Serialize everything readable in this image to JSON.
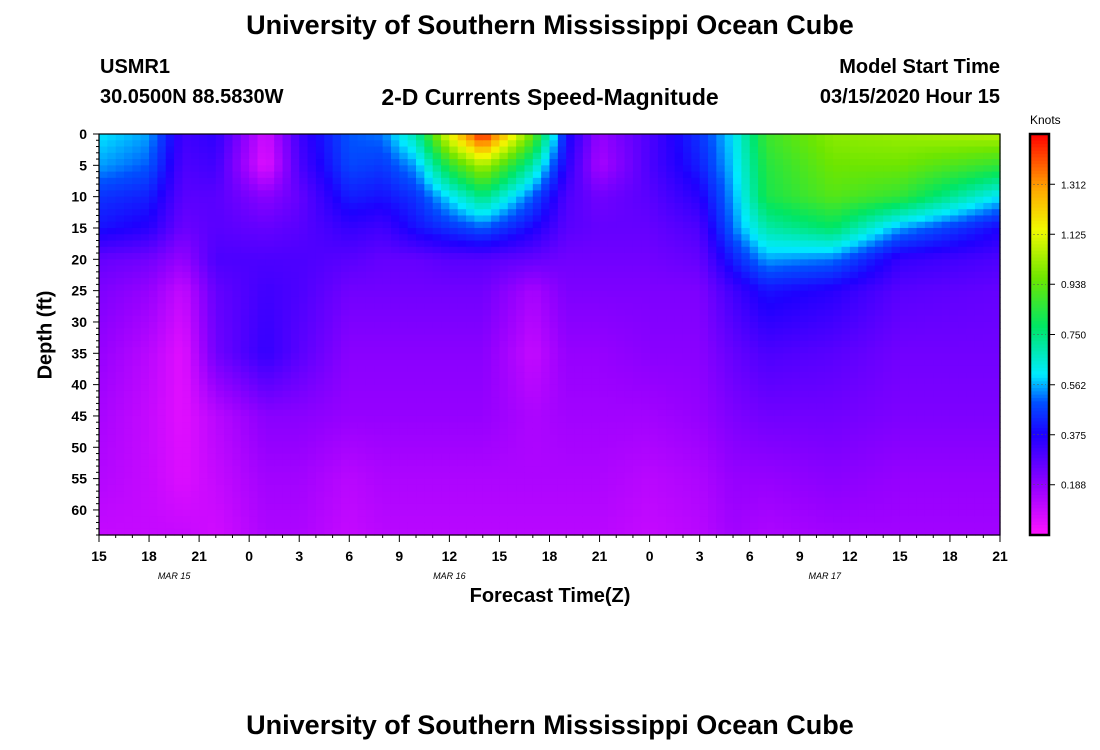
{
  "header": {
    "title_top": "University of Southern Mississippi Ocean Cube",
    "title_bottom": "University of Southern Mississippi Ocean Cube",
    "station": "USMR1",
    "location": "30.0500N 88.5830W",
    "chart_title": "2-D Currents Speed-Magnitude",
    "model_start_label": "Model Start Time",
    "model_start_value": "03/15/2020 Hour 15"
  },
  "chart_data": {
    "type": "heatmap",
    "title": "2-D Currents Speed-Magnitude",
    "xlabel": "Forecast Time(Z)",
    "ylabel": "Depth (ft)",
    "x_tick_labels": [
      "15",
      "18",
      "21",
      "0",
      "3",
      "6",
      "9",
      "12",
      "15",
      "18",
      "21",
      "0",
      "3",
      "6",
      "9",
      "12",
      "15",
      "18",
      "21"
    ],
    "x_range_hours": [
      0,
      54
    ],
    "date_labels": [
      {
        "label": "MAR 15",
        "hour": 4.5
      },
      {
        "label": "MAR 16",
        "hour": 21
      },
      {
        "label": "MAR 17",
        "hour": 43.5
      }
    ],
    "y_ticks": [
      0,
      5,
      10,
      15,
      20,
      25,
      30,
      35,
      40,
      45,
      50,
      55,
      60
    ],
    "ylim": [
      0,
      64
    ],
    "y_inverted": true,
    "colorbar": {
      "units": "Knots",
      "tick_labels": [
        "1.312",
        "1.125",
        "0.938",
        "0.750",
        "0.562",
        "0.375",
        "0.188"
      ],
      "range": [
        0,
        1.5
      ]
    },
    "depth_levels": [
      0,
      5,
      10,
      15,
      20,
      25,
      35,
      45,
      55,
      64
    ],
    "speed_grid": [
      {
        "hour": 0,
        "values": [
          0.6,
          0.55,
          0.45,
          0.4,
          0.26,
          0.22,
          0.18,
          0.15,
          0.13,
          0.1
        ]
      },
      {
        "hour": 3,
        "values": [
          0.55,
          0.5,
          0.42,
          0.36,
          0.24,
          0.18,
          0.12,
          0.1,
          0.1,
          0.1
        ]
      },
      {
        "hour": 5,
        "values": [
          0.32,
          0.3,
          0.28,
          0.25,
          0.18,
          0.1,
          0.05,
          0.05,
          0.06,
          0.1
        ]
      },
      {
        "hour": 7,
        "values": [
          0.35,
          0.32,
          0.28,
          0.28,
          0.3,
          0.26,
          0.24,
          0.12,
          0.1,
          0.08
        ]
      },
      {
        "hour": 10,
        "values": [
          0.08,
          0.05,
          0.2,
          0.26,
          0.3,
          0.32,
          0.34,
          0.2,
          0.16,
          0.14
        ]
      },
      {
        "hour": 12,
        "values": [
          0.32,
          0.3,
          0.26,
          0.28,
          0.3,
          0.3,
          0.28,
          0.2,
          0.16,
          0.14
        ]
      },
      {
        "hour": 15,
        "values": [
          0.5,
          0.48,
          0.42,
          0.34,
          0.28,
          0.24,
          0.2,
          0.18,
          0.12,
          0.1
        ]
      },
      {
        "hour": 17,
        "values": [
          0.52,
          0.46,
          0.4,
          0.32,
          0.26,
          0.24,
          0.2,
          0.18,
          0.14,
          0.12
        ]
      },
      {
        "hour": 19,
        "values": [
          0.7,
          0.55,
          0.45,
          0.4,
          0.26,
          0.24,
          0.2,
          0.18,
          0.14,
          0.12
        ]
      },
      {
        "hour": 21,
        "values": [
          1.15,
          0.85,
          0.6,
          0.45,
          0.28,
          0.24,
          0.2,
          0.18,
          0.14,
          0.12
        ]
      },
      {
        "hour": 23,
        "values": [
          1.48,
          1.05,
          0.75,
          0.5,
          0.28,
          0.24,
          0.2,
          0.18,
          0.14,
          0.12
        ]
      },
      {
        "hour": 26,
        "values": [
          0.95,
          0.7,
          0.5,
          0.38,
          0.26,
          0.15,
          0.1,
          0.14,
          0.14,
          0.12
        ]
      },
      {
        "hour": 28,
        "values": [
          0.4,
          0.36,
          0.3,
          0.28,
          0.24,
          0.22,
          0.18,
          0.16,
          0.14,
          0.12
        ]
      },
      {
        "hour": 30,
        "values": [
          0.18,
          0.15,
          0.24,
          0.26,
          0.24,
          0.22,
          0.18,
          0.16,
          0.14,
          0.12
        ]
      },
      {
        "hour": 33,
        "values": [
          0.3,
          0.3,
          0.28,
          0.26,
          0.24,
          0.22,
          0.2,
          0.16,
          0.12,
          0.1
        ]
      },
      {
        "hour": 36,
        "values": [
          0.45,
          0.42,
          0.36,
          0.3,
          0.26,
          0.22,
          0.2,
          0.18,
          0.14,
          0.12
        ]
      },
      {
        "hour": 38,
        "values": [
          0.6,
          0.58,
          0.55,
          0.52,
          0.42,
          0.32,
          0.26,
          0.22,
          0.18,
          0.16
        ]
      },
      {
        "hour": 40,
        "values": [
          0.88,
          0.84,
          0.82,
          0.7,
          0.55,
          0.4,
          0.3,
          0.24,
          0.18,
          0.14
        ]
      },
      {
        "hour": 44,
        "values": [
          1.0,
          0.96,
          0.92,
          0.78,
          0.52,
          0.36,
          0.28,
          0.24,
          0.2,
          0.16
        ]
      },
      {
        "hour": 48,
        "values": [
          1.02,
          0.96,
          0.86,
          0.55,
          0.34,
          0.28,
          0.24,
          0.22,
          0.18,
          0.16
        ]
      },
      {
        "hour": 54,
        "values": [
          1.06,
          0.86,
          0.6,
          0.38,
          0.3,
          0.26,
          0.24,
          0.22,
          0.18,
          0.16
        ]
      }
    ]
  }
}
